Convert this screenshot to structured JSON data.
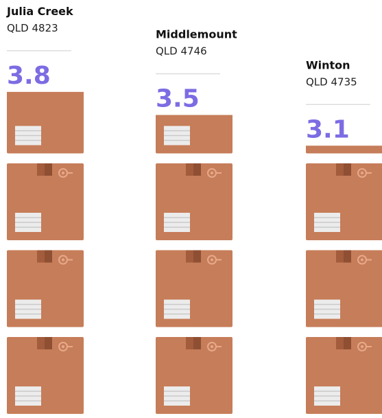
{
  "chart_data": {
    "type": "pictogram",
    "categories": [
      "Julia Creek",
      "Middlemount",
      "Winton"
    ],
    "subtitles": [
      "QLD 4823",
      "QLD 4746",
      "QLD 4735"
    ],
    "values": [
      3.8,
      3.5,
      3.1
    ],
    "color": "#c67d59",
    "label_color": "#7c6ce3"
  }
}
